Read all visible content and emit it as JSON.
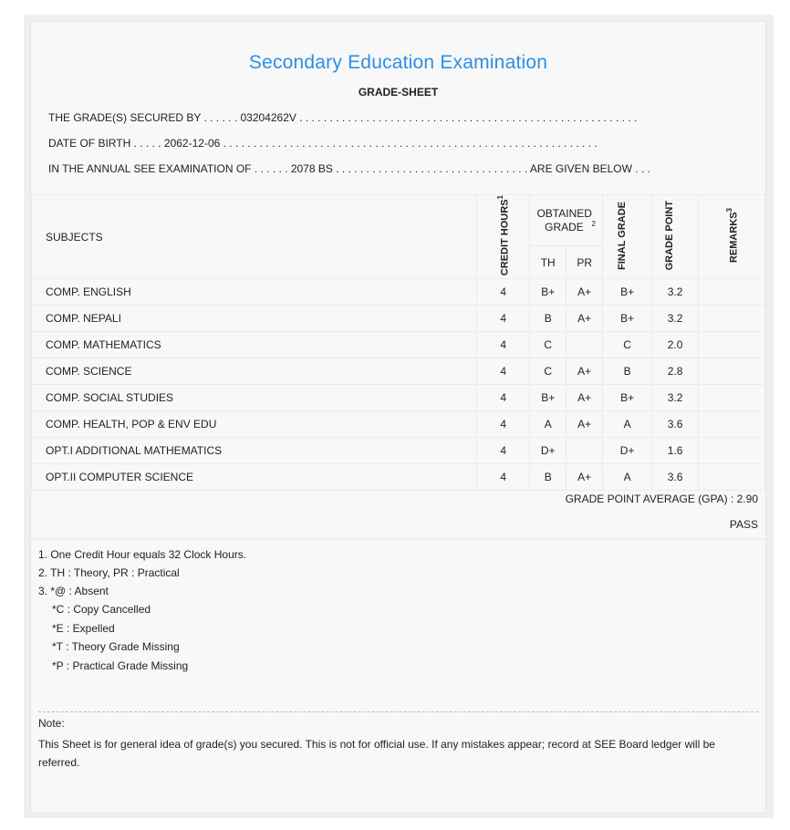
{
  "header": {
    "title": "Secondary Education Examination",
    "subtitle": "GRADE-SHEET",
    "secured_by": "THE GRADE(S) SECURED BY . . . . . . 03204262V . . . . . . . . . . . . . . . . . . . . . . . . . . . . . . . . . . . . . . . . . . . . . . . . . . . . . . . .",
    "dob": "DATE OF BIRTH . . . . . 2062-12-06 . . . . . . . . . . . . . . . . . . . . . . . . . . . . . . . . . . . . . . . . . . . . . . . . . . . . . . . . . . . . . .",
    "exam": "IN THE ANNUAL SEE EXAMINATION OF . . . . . . 2078 BS . . . . . . . . . . . . . . . . . . . . . . . . . . . . . . . . ARE GIVEN BELOW . . ."
  },
  "table": {
    "headers": {
      "subjects": "SUBJECTS",
      "credit": "CREDIT HOURS",
      "credit_sup": "1",
      "obtained": "OBTAINED GRADE",
      "obtained_sup": "2",
      "th": "TH",
      "pr": "PR",
      "final": "FINAL GRADE",
      "gp": "GRADE POINT",
      "remarks": "REMARKS",
      "remarks_sup": "3"
    },
    "rows": [
      {
        "subject": "COMP. ENGLISH",
        "credit": "4",
        "th": "B+",
        "pr": "A+",
        "final": "B+",
        "gp": "3.2",
        "remarks": ""
      },
      {
        "subject": "COMP. NEPALI",
        "credit": "4",
        "th": "B",
        "pr": "A+",
        "final": "B+",
        "gp": "3.2",
        "remarks": ""
      },
      {
        "subject": "COMP. MATHEMATICS",
        "credit": "4",
        "th": "C",
        "pr": "",
        "final": "C",
        "gp": "2.0",
        "remarks": ""
      },
      {
        "subject": "COMP. SCIENCE",
        "credit": "4",
        "th": "C",
        "pr": "A+",
        "final": "B",
        "gp": "2.8",
        "remarks": ""
      },
      {
        "subject": "COMP. SOCIAL STUDIES",
        "credit": "4",
        "th": "B+",
        "pr": "A+",
        "final": "B+",
        "gp": "3.2",
        "remarks": ""
      },
      {
        "subject": "COMP. HEALTH, POP & ENV EDU",
        "credit": "4",
        "th": "A",
        "pr": "A+",
        "final": "A",
        "gp": "3.6",
        "remarks": ""
      },
      {
        "subject": "OPT.I ADDITIONAL MATHEMATICS",
        "credit": "4",
        "th": "D+",
        "pr": "",
        "final": "D+",
        "gp": "1.6",
        "remarks": ""
      },
      {
        "subject": "OPT.II COMPUTER SCIENCE",
        "credit": "4",
        "th": "B",
        "pr": "A+",
        "final": "A",
        "gp": "3.6",
        "remarks": ""
      }
    ]
  },
  "result": {
    "gpa": "GRADE POINT AVERAGE (GPA) : 2.90",
    "status": "PASS"
  },
  "footnotes": [
    "1. One Credit Hour equals 32 Clock Hours.",
    "2. TH : Theory, PR : Practical",
    "3. *@ : Absent",
    "*C : Copy Cancelled",
    "*E : Expelled",
    "*T : Theory Grade Missing",
    "*P : Practical Grade Missing"
  ],
  "note": {
    "label": "Note:",
    "text": "This Sheet is for general idea of grade(s) you secured. This is not for official use. If any mistakes appear; record at SEE Board ledger will be referred."
  },
  "colors": {
    "title": "#2b8fe6",
    "background": "#f8f8f8"
  }
}
